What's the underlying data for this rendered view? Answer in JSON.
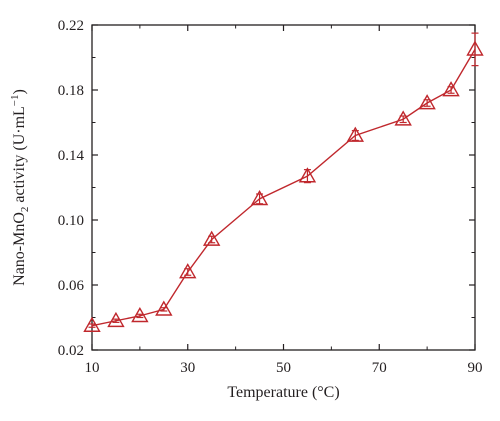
{
  "chart_data": {
    "type": "line",
    "title": "",
    "xlabel": "Temperature (°C)",
    "ylabel": {
      "prefix": "Nano-MnO",
      "subscript": "2",
      "middle": " activity (U·mL",
      "superscript": "−1",
      "suffix": ")"
    },
    "xlim": [
      10,
      90
    ],
    "ylim": [
      0.02,
      0.22
    ],
    "xticks": [
      "10",
      "30",
      "50",
      "70",
      "90"
    ],
    "yticks": [
      "0.02",
      "0.06",
      "0.10",
      "0.14",
      "0.18",
      "0.22"
    ],
    "grid": false,
    "marker": "open-triangle",
    "color": "#c0282d",
    "series": [
      {
        "x": [
          10,
          15,
          20,
          25,
          30,
          35,
          45,
          55,
          65,
          75,
          80,
          85,
          90
        ],
        "y": [
          0.035,
          0.038,
          0.041,
          0.045,
          0.068,
          0.088,
          0.113,
          0.127,
          0.152,
          0.162,
          0.172,
          0.18,
          0.205
        ],
        "error": [
          0.001,
          0.001,
          0.001,
          0.001,
          0.002,
          0.002,
          0.003,
          0.004,
          0.003,
          0.002,
          0.002,
          0.002,
          0.01
        ]
      }
    ]
  }
}
